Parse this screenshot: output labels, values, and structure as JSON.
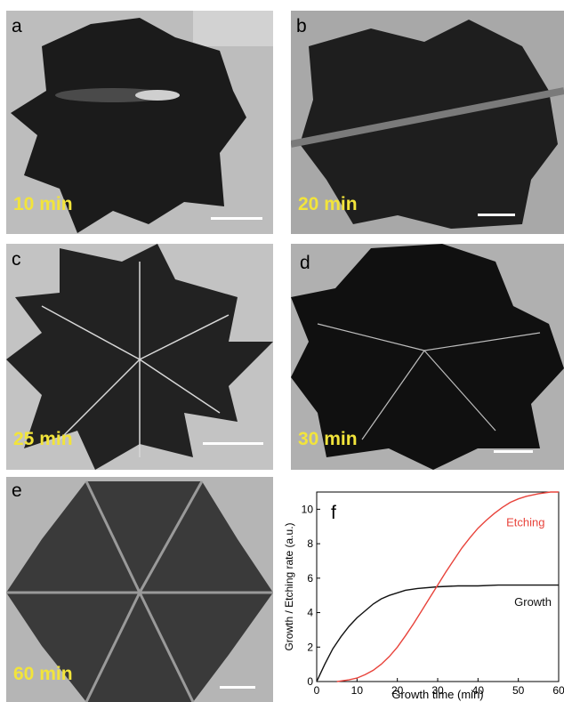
{
  "figure": {
    "panels": [
      {
        "letter": "a",
        "time": "10 min"
      },
      {
        "letter": "b",
        "time": "20 min"
      },
      {
        "letter": "c",
        "time": "25 min"
      },
      {
        "letter": "d",
        "time": "30 min"
      },
      {
        "letter": "e",
        "time": "60 min"
      }
    ]
  },
  "chart_data": {
    "type": "line",
    "panel_letter": "f",
    "xlabel": "Growth time (min)",
    "ylabel": "Growth / Etching rate (a.u.)",
    "xlim": [
      0,
      60
    ],
    "ylim": [
      0,
      11
    ],
    "xticks": [
      "0",
      "10",
      "20",
      "30",
      "40",
      "50",
      "60"
    ],
    "yticks": [
      "0",
      "2",
      "4",
      "6",
      "8",
      "10"
    ],
    "grid": false,
    "series": [
      {
        "name": "Growth",
        "color": "#111111",
        "x": [
          0,
          2,
          4,
          6,
          8,
          10,
          12,
          14,
          16,
          18,
          20,
          22,
          25,
          30,
          35,
          40,
          45,
          50,
          55,
          60
        ],
        "y": [
          0,
          1.0,
          1.9,
          2.6,
          3.2,
          3.7,
          4.1,
          4.5,
          4.8,
          5.0,
          5.15,
          5.3,
          5.4,
          5.5,
          5.55,
          5.55,
          5.6,
          5.6,
          5.6,
          5.6
        ]
      },
      {
        "name": "Etching",
        "color": "#e8433b",
        "x": [
          5,
          8,
          10,
          12,
          14,
          16,
          18,
          20,
          22,
          24,
          26,
          28,
          30,
          32,
          34,
          36,
          38,
          40,
          42,
          44,
          46,
          48,
          50,
          52,
          55,
          58,
          60
        ],
        "y": [
          0,
          0.1,
          0.2,
          0.4,
          0.65,
          1.0,
          1.45,
          2.0,
          2.65,
          3.35,
          4.1,
          4.85,
          5.6,
          6.35,
          7.05,
          7.75,
          8.35,
          8.9,
          9.35,
          9.75,
          10.1,
          10.4,
          10.6,
          10.75,
          10.9,
          11.0,
          11.0
        ]
      }
    ]
  }
}
